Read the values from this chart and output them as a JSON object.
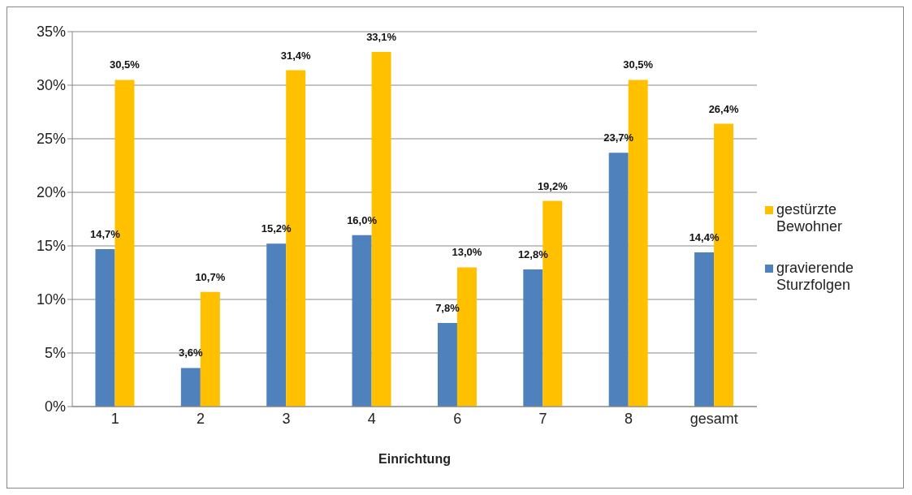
{
  "chart_data": {
    "type": "bar",
    "xlabel": "Einrichtung",
    "categories": [
      "1",
      "2",
      "3",
      "4",
      "6",
      "7",
      "8",
      "gesamt"
    ],
    "series": [
      {
        "name": "gravierende Sturzfolgen",
        "color": "#4f81bd",
        "values": [
          14.7,
          3.6,
          15.2,
          16.0,
          7.8,
          12.8,
          23.7,
          14.4
        ],
        "value_labels": [
          "14,7%",
          "3,6%",
          "15,2%",
          "16,0%",
          "7,8%",
          "12,8%",
          "23,7%",
          "14,4%"
        ]
      },
      {
        "name": "gestürzte Bewohner",
        "color": "#ffc000",
        "values": [
          30.5,
          10.7,
          31.4,
          33.1,
          13.0,
          19.2,
          30.5,
          26.4
        ],
        "value_labels": [
          "30,5%",
          "10,7%",
          "31,4%",
          "33,1%",
          "13,0%",
          "19,2%",
          "30,5%",
          "26,4%"
        ]
      }
    ],
    "ylim": [
      0,
      35
    ],
    "yticks": [
      {
        "value": 0,
        "label": "0%"
      },
      {
        "value": 5,
        "label": "5%"
      },
      {
        "value": 10,
        "label": "10%"
      },
      {
        "value": 15,
        "label": "15%"
      },
      {
        "value": 20,
        "label": "20%"
      },
      {
        "value": 25,
        "label": "25%"
      },
      {
        "value": 30,
        "label": "30%"
      },
      {
        "value": 35,
        "label": "35%"
      }
    ],
    "grid": "y",
    "legend": "right"
  }
}
